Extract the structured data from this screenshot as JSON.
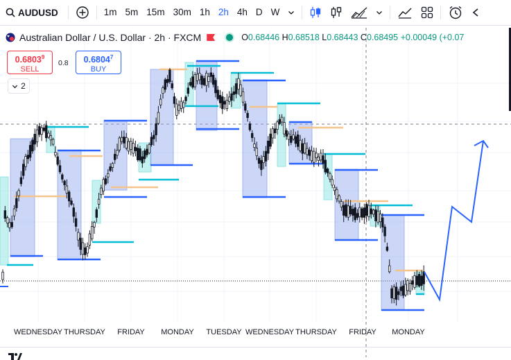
{
  "toolbar": {
    "symbol": "AUDUSD",
    "intervals": [
      "1m",
      "5m",
      "15m",
      "30m",
      "1h",
      "2h",
      "4h",
      "D",
      "W"
    ],
    "active_interval": "2h"
  },
  "legend": {
    "title": "Australian Dollar / U.S. Dollar · 2h · FXCM",
    "ohlc": {
      "o_label": "O",
      "o": "0.68446",
      "h_label": "H",
      "h": "0.68518",
      "l_label": "L",
      "l": "0.68443",
      "c_label": "C",
      "c": "0.68495",
      "change": "+0.00049 (+0.07"
    }
  },
  "trade": {
    "sell_price": "0.6803",
    "sell_sup": "9",
    "sell_label": "SELL",
    "spread": "0.8",
    "buy_price": "0.6804",
    "buy_sup": "7",
    "buy_label": "BUY"
  },
  "indicators_count": "2",
  "time_axis": [
    "WEDNESDAY",
    "THURSDAY",
    "FRIDAY",
    "MONDAY",
    "TUESDAY",
    "WEDNESDAY",
    "THURSDAY",
    "FRIDAY",
    "MONDAY"
  ],
  "colors": {
    "up": "#089981",
    "down": "#f23645",
    "accent": "#2962ff",
    "candle": "#131722",
    "box_blue": "#8fa6ee",
    "box_cyan": "#7fe0e0",
    "line_blue": "#2962ff",
    "line_cyan": "#00bcd4",
    "line_orange": "#f5c48a",
    "forecast": "#2962ff"
  }
}
